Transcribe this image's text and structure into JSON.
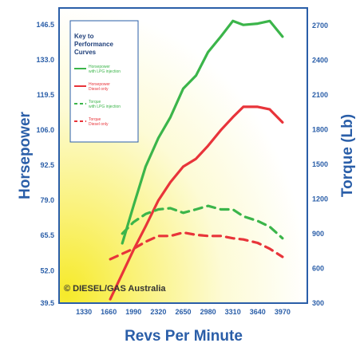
{
  "chart_data": {
    "type": "line",
    "xlabel": "Revs Per Minute",
    "ylabel_left": "Horsepower",
    "ylabel_right": "Torque (Lb)",
    "x_ticks": [
      1330,
      1660,
      1990,
      2320,
      2650,
      2980,
      3310,
      3640,
      3970
    ],
    "x_range": [
      1000,
      4300
    ],
    "y_left_ticks": [
      "39.5",
      "52.0",
      "65.5",
      "79.0",
      "92.5",
      "106.0",
      "119.5",
      "133.0",
      "146.5"
    ],
    "y_left_range": [
      39.5,
      153
    ],
    "y_right_ticks": [
      "300",
      "600",
      "900",
      "1200",
      "1500",
      "1800",
      "2100",
      "2400",
      "2700"
    ],
    "y_right_range": [
      300,
      2850
    ],
    "legend": {
      "title_line1": "Key to",
      "title_line2": "Performance",
      "title_line3": "Curves",
      "entries": [
        {
          "line1": "Horsepower",
          "line2": "with LPG injection",
          "color": "#3bb54a",
          "style": "solid"
        },
        {
          "line1": "Horsepower",
          "line2": "Diesel only",
          "color": "#e8343a",
          "style": "solid"
        },
        {
          "line1": "Torque",
          "line2": "with LPG injection",
          "color": "#3bb54a",
          "style": "dashed"
        },
        {
          "line1": "Torque",
          "line2": "Diesel only",
          "color": "#e8343a",
          "style": "dashed"
        }
      ]
    },
    "series": [
      {
        "name": "Horsepower with LPG injection",
        "axis": "left",
        "color": "#3bb54a",
        "style": "solid",
        "x": [
          1840,
          1990,
          2150,
          2320,
          2480,
          2650,
          2820,
          2980,
          3150,
          3310,
          3450,
          3640,
          3800,
          3970
        ],
        "y": [
          62.5,
          77,
          92,
          103,
          111,
          122,
          127,
          136,
          142,
          148,
          146.5,
          147,
          148,
          142
        ]
      },
      {
        "name": "Horsepower Diesel only",
        "axis": "left",
        "color": "#e8343a",
        "style": "solid",
        "x": [
          1680,
          1990,
          2150,
          2320,
          2480,
          2650,
          2820,
          2980,
          3150,
          3310,
          3450,
          3640,
          3800,
          3970
        ],
        "y": [
          41,
          60,
          69,
          79,
          86,
          92,
          95,
          100,
          106,
          111,
          115,
          115,
          114,
          109
        ]
      },
      {
        "name": "Torque with LPG injection",
        "axis": "right",
        "color": "#3bb54a",
        "style": "dashed",
        "x": [
          1840,
          1990,
          2150,
          2320,
          2480,
          2650,
          2820,
          2980,
          3150,
          3310,
          3450,
          3640,
          3800,
          3970
        ],
        "y": [
          900,
          1000,
          1070,
          1110,
          1120,
          1080,
          1110,
          1140,
          1110,
          1110,
          1050,
          1010,
          960,
          860
        ]
      },
      {
        "name": "Torque Diesel only",
        "axis": "right",
        "color": "#e8343a",
        "style": "dashed",
        "x": [
          1680,
          1990,
          2150,
          2320,
          2480,
          2650,
          2820,
          2980,
          3150,
          3310,
          3450,
          3640,
          3800,
          3970
        ],
        "y": [
          680,
          770,
          830,
          880,
          880,
          910,
          890,
          880,
          880,
          860,
          850,
          820,
          770,
          700
        ]
      }
    ],
    "annotation": "© DIESEL/GAS Australia",
    "grid": false,
    "legend_position": "top-left"
  }
}
